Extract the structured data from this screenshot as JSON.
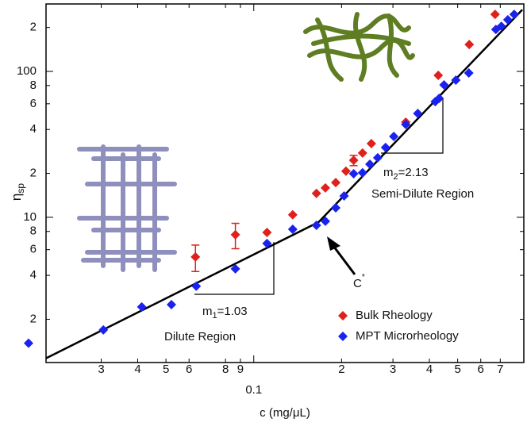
{
  "chart_data": {
    "type": "scatter",
    "x_label": {
      "text": "c (mg/μL)"
    },
    "y_label": {
      "text": "η",
      "sub": "sp"
    },
    "log_x": true,
    "log_y": true,
    "xlim": [
      0.0194,
      0.843
    ],
    "ylim": [
      1.01,
      290
    ],
    "xticks": [
      {
        "value": 0.03,
        "label": "3"
      },
      {
        "value": 0.04,
        "label": "4"
      },
      {
        "value": 0.05,
        "label": "5"
      },
      {
        "value": 0.06,
        "label": "6"
      },
      {
        "value": 0.08,
        "label": "8"
      },
      {
        "value": 0.09,
        "label": "9"
      },
      0.1,
      {
        "value": 0.2,
        "label": "2"
      },
      {
        "value": 0.3,
        "label": "3"
      },
      {
        "value": 0.4,
        "label": "4"
      },
      {
        "value": 0.5,
        "label": "5"
      },
      {
        "value": 0.6,
        "label": "6"
      },
      {
        "value": 0.7,
        "label": "7"
      }
    ],
    "yticks": [
      2,
      4,
      6,
      8,
      10,
      {
        "value": 20,
        "label": "2"
      },
      {
        "value": 40,
        "label": "4"
      },
      {
        "value": 60,
        "label": "6"
      },
      {
        "value": 80,
        "label": "8"
      },
      100,
      {
        "value": 200,
        "label": "2"
      }
    ],
    "legend": "lower right",
    "series": [
      {
        "name": "Bulk Rheology",
        "color": "#e0201b",
        "x": [
          0.0631,
          0.0865,
          0.111,
          0.136,
          0.164,
          0.176,
          0.191,
          0.207,
          0.22,
          0.236,
          0.253,
          0.332,
          0.429,
          0.548,
          0.672
        ],
        "values": [
          5.35,
          7.59,
          7.88,
          10.4,
          14.6,
          15.9,
          17.3,
          20.7,
          24.6,
          27.6,
          32.0,
          44.9,
          94.0,
          153,
          246
        ],
        "errors": [
          1.1,
          1.5,
          null,
          null,
          null,
          null,
          null,
          null,
          2,
          null,
          null,
          null,
          null,
          null,
          null
        ]
      },
      {
        "name": "MPT Microrheology",
        "color": "#1a22f0",
        "x": [
          0.0169,
          0.0305,
          0.0413,
          0.0522,
          0.0635,
          0.0865,
          0.111,
          0.136,
          0.164,
          0.176,
          0.191,
          0.204,
          0.22,
          0.236,
          0.25,
          0.266,
          0.283,
          0.302,
          0.332,
          0.365,
          0.419,
          0.432,
          0.449,
          0.493,
          0.546,
          0.676,
          0.706,
          0.743,
          0.781
        ],
        "values": [
          1.37,
          1.69,
          2.43,
          2.52,
          3.37,
          4.43,
          6.62,
          8.28,
          8.82,
          9.39,
          11.6,
          14.0,
          19.9,
          20.2,
          23.1,
          25.6,
          30.1,
          35.8,
          43.3,
          51.5,
          62.1,
          65.3,
          80.9,
          87.1,
          97.5,
          194,
          204,
          226,
          246
        ]
      }
    ],
    "fit_line": {
      "color": "#000000",
      "x": [
        0.0194,
        0.167,
        0.833
      ],
      "values": [
        1.08,
        9.28,
        265
      ]
    },
    "annotations": {
      "m1": {
        "text": "m",
        "sub": "1",
        "rest": "=1.03"
      },
      "m2": {
        "text": "m",
        "sub": "2",
        "rest": "=2.13"
      },
      "dilute": "Dilute Region",
      "semi_dilute": "Semi-Dilute Region",
      "c_star": {
        "text": "C",
        "sup": "*"
      }
    }
  }
}
